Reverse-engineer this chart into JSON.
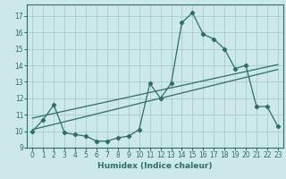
{
  "xlabel": "Humidex (Indice chaleur)",
  "background_color": "#cce8e8",
  "grid_color": "#aacccc",
  "line_color": "#2e7060",
  "xlim": [
    -0.5,
    23.5
  ],
  "ylim": [
    9.0,
    17.7
  ],
  "xticks": [
    0,
    1,
    2,
    3,
    4,
    5,
    6,
    7,
    8,
    9,
    10,
    11,
    12,
    13,
    14,
    15,
    16,
    17,
    18,
    19,
    20,
    21,
    22,
    23
  ],
  "yticks": [
    9,
    10,
    11,
    12,
    13,
    14,
    15,
    16,
    17
  ],
  "main_x": [
    0,
    1,
    2,
    3,
    4,
    5,
    6,
    7,
    8,
    9,
    10,
    11,
    12,
    13,
    14,
    15,
    16,
    17,
    18,
    19,
    20,
    21,
    22,
    23
  ],
  "main_y": [
    10.0,
    10.7,
    11.6,
    9.9,
    9.8,
    9.7,
    9.4,
    9.4,
    9.6,
    9.7,
    10.1,
    12.9,
    12.0,
    12.9,
    16.6,
    17.2,
    15.9,
    15.6,
    15.0,
    13.8,
    14.0,
    11.5,
    11.5,
    10.3
  ],
  "trend1_x": [
    0,
    23
  ],
  "trend1_y": [
    10.1,
    13.75
  ],
  "trend2_x": [
    0,
    23
  ],
  "trend2_y": [
    10.8,
    14.05
  ]
}
